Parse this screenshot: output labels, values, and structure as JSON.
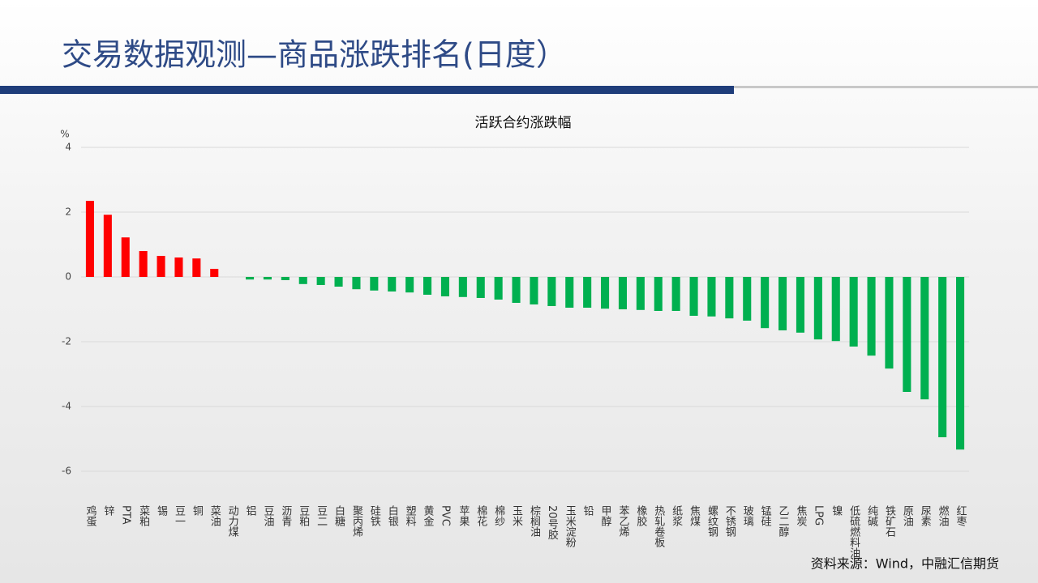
{
  "title": "交易数据观测—商品涨跌排名(日度）",
  "chart_data": {
    "type": "bar",
    "title": "活跃合约涨跌幅",
    "y_unit": "%",
    "categories": [
      "鸡蛋",
      "锌",
      "PTA",
      "菜粕",
      "锡",
      "豆一",
      "铜",
      "菜油",
      "动力煤",
      "铝",
      "豆油",
      "沥青",
      "豆粕",
      "豆二",
      "白糖",
      "聚丙烯",
      "硅铁",
      "白银",
      "塑料",
      "黄金",
      "PVC",
      "苹果",
      "棉花",
      "棉纱",
      "玉米",
      "棕榈油",
      "20号胶",
      "玉米淀粉",
      "铅",
      "甲醇",
      "苯乙烯",
      "橡胶",
      "热轧卷板",
      "纸浆",
      "焦煤",
      "螺纹钢",
      "不锈钢",
      "玻璃",
      "锰硅",
      "乙二醇",
      "焦炭",
      "LPG",
      "镍",
      "低硫燃料油",
      "纯碱",
      "铁矿石",
      "原油",
      "尿素",
      "燃油",
      "红枣"
    ],
    "values": [
      2.35,
      1.92,
      1.22,
      0.8,
      0.65,
      0.6,
      0.57,
      0.25,
      0,
      -0.08,
      -0.08,
      -0.1,
      -0.22,
      -0.25,
      -0.3,
      -0.38,
      -0.42,
      -0.45,
      -0.48,
      -0.55,
      -0.6,
      -0.62,
      -0.65,
      -0.7,
      -0.8,
      -0.85,
      -0.9,
      -0.95,
      -0.95,
      -0.98,
      -1.0,
      -1.02,
      -1.05,
      -1.05,
      -1.2,
      -1.22,
      -1.28,
      -1.35,
      -1.58,
      -1.65,
      -1.72,
      -1.93,
      -1.98,
      -2.15,
      -2.43,
      -2.83,
      -3.55,
      -3.78,
      -4.95,
      -5.33
    ],
    "positive_color": "#ff0000",
    "negative_color": "#00b050",
    "ylim": [
      -6,
      4
    ],
    "yticks": [
      -6,
      -4,
      -2,
      0,
      2,
      4
    ],
    "grid": true
  },
  "source": "资料来源：Wind，中融汇信期货"
}
